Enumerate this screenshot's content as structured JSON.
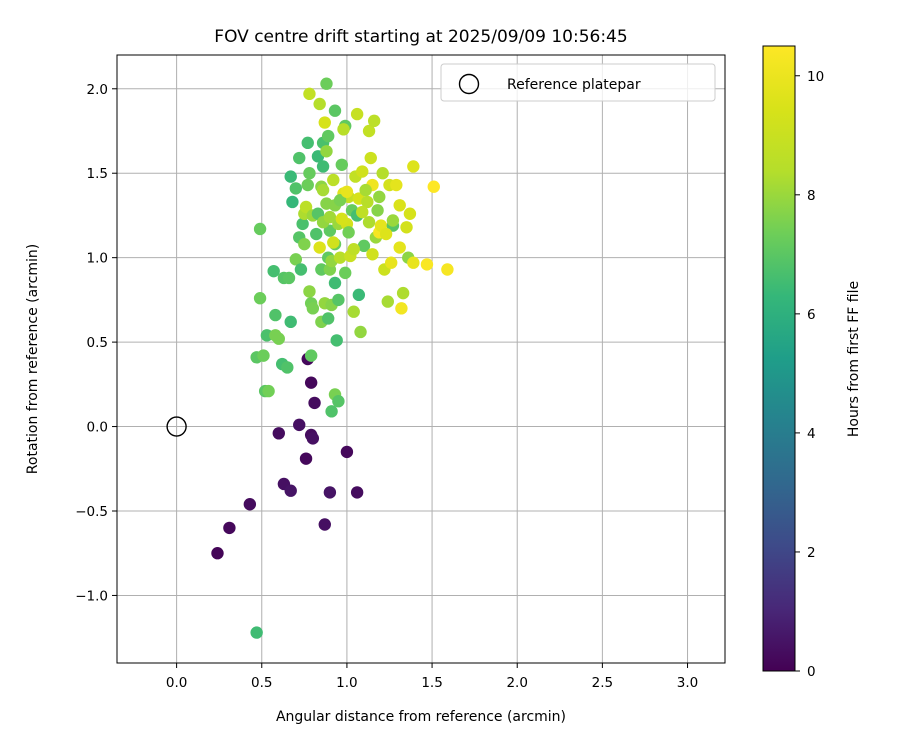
{
  "chart_data": {
    "type": "scatter",
    "title": "FOV centre drift starting at 2025/09/09 10:56:45",
    "xlabel": "Angular distance from reference (arcmin)",
    "ylabel": "Rotation from reference (arcmin)",
    "xlim": [
      -0.35,
      3.22
    ],
    "ylim": [
      -1.4,
      2.2
    ],
    "xticks": [
      0.0,
      0.5,
      1.0,
      1.5,
      2.0,
      2.5,
      3.0
    ],
    "xtick_labels": [
      "0.0",
      "0.5",
      "1.0",
      "1.5",
      "2.0",
      "2.5",
      "3.0"
    ],
    "yticks": [
      -1.0,
      -0.5,
      0.0,
      0.5,
      1.0,
      1.5,
      2.0
    ],
    "ytick_labels": [
      "−1.0",
      "−0.5",
      "0.0",
      "0.5",
      "1.0",
      "1.5",
      "2.0"
    ],
    "grid": true,
    "legend": {
      "placement": "top-right",
      "entries": [
        "Reference platepar"
      ]
    },
    "reference_point": {
      "x": 0.0,
      "y": 0.0,
      "label": "Reference platepar"
    },
    "colorbar": {
      "label": "Hours from first FF file",
      "colormap": "viridis",
      "range": [
        0,
        10.5
      ],
      "ticks": [
        0,
        2,
        4,
        6,
        8,
        10
      ],
      "tick_labels": [
        "0",
        "2",
        "4",
        "6",
        "8",
        "10"
      ]
    },
    "points": [
      [
        0.24,
        -0.75,
        0.1
      ],
      [
        0.31,
        -0.6,
        0.2
      ],
      [
        0.43,
        -0.46,
        0.3
      ],
      [
        0.6,
        -0.04,
        0.3
      ],
      [
        0.63,
        -0.34,
        0.4
      ],
      [
        0.67,
        -0.38,
        0.5
      ],
      [
        0.72,
        0.01,
        0.4
      ],
      [
        0.76,
        -0.19,
        0.2
      ],
      [
        0.79,
        -0.05,
        0.3
      ],
      [
        0.8,
        -0.07,
        0.4
      ],
      [
        0.77,
        0.4,
        0.2
      ],
      [
        0.79,
        0.26,
        0.2
      ],
      [
        0.81,
        0.14,
        0.3
      ],
      [
        0.87,
        -0.58,
        0.4
      ],
      [
        0.9,
        -0.39,
        0.5
      ],
      [
        1.0,
        -0.15,
        0.2
      ],
      [
        1.06,
        -0.39,
        0.3
      ],
      [
        0.47,
        -1.22,
        6.5
      ],
      [
        0.47,
        0.41,
        7.0
      ],
      [
        0.51,
        0.42,
        7.3
      ],
      [
        0.52,
        0.21,
        7.0
      ],
      [
        0.54,
        0.21,
        7.4
      ],
      [
        0.53,
        0.54,
        6.7
      ],
      [
        0.58,
        0.54,
        7.5
      ],
      [
        0.58,
        0.66,
        6.8
      ],
      [
        0.6,
        0.52,
        7.5
      ],
      [
        0.62,
        0.37,
        6.6
      ],
      [
        0.65,
        0.35,
        6.8
      ],
      [
        0.67,
        0.62,
        6.5
      ],
      [
        0.79,
        0.42,
        7.1
      ],
      [
        0.91,
        0.09,
        6.8
      ],
      [
        0.93,
        0.19,
        7.5
      ],
      [
        0.95,
        0.15,
        6.9
      ],
      [
        0.49,
        0.76,
        7.3
      ],
      [
        0.49,
        1.17,
        7.2
      ],
      [
        0.57,
        0.92,
        6.6
      ],
      [
        0.63,
        0.88,
        6.9
      ],
      [
        0.66,
        0.88,
        7.0
      ],
      [
        0.67,
        1.48,
        6.4
      ],
      [
        0.68,
        1.33,
        6.3
      ],
      [
        0.7,
        1.41,
        6.8
      ],
      [
        0.72,
        1.59,
        6.8
      ],
      [
        0.72,
        1.12,
        6.9
      ],
      [
        0.7,
        0.99,
        7.5
      ],
      [
        0.73,
        0.93,
        6.6
      ],
      [
        0.74,
        1.2,
        6.7
      ],
      [
        0.75,
        1.26,
        8.3
      ],
      [
        0.76,
        1.3,
        8.6
      ],
      [
        0.77,
        1.43,
        7.3
      ],
      [
        0.77,
        1.68,
        6.6
      ],
      [
        0.78,
        1.5,
        7.2
      ],
      [
        0.78,
        0.8,
        7.8
      ],
      [
        0.79,
        0.73,
        7.4
      ],
      [
        0.8,
        0.7,
        7.5
      ],
      [
        0.82,
        1.14,
        6.8
      ],
      [
        0.83,
        1.6,
        6.4
      ],
      [
        0.84,
        1.06,
        9.6
      ],
      [
        0.85,
        1.42,
        7.8
      ],
      [
        0.85,
        0.93,
        7.1
      ],
      [
        0.85,
        0.62,
        7.6
      ],
      [
        0.86,
        1.68,
        6.7
      ],
      [
        0.86,
        1.54,
        6.5
      ],
      [
        0.86,
        1.4,
        8.2
      ],
      [
        0.87,
        0.73,
        7.9
      ],
      [
        0.88,
        1.32,
        7.7
      ],
      [
        0.88,
        1.63,
        7.9
      ],
      [
        0.89,
        1.0,
        7.1
      ],
      [
        0.89,
        0.64,
        6.8
      ],
      [
        0.9,
        1.16,
        7.1
      ],
      [
        0.9,
        0.93,
        7.6
      ],
      [
        0.91,
        0.72,
        7.7
      ],
      [
        0.91,
        0.98,
        7.9
      ],
      [
        0.92,
        1.46,
        8.6
      ],
      [
        0.93,
        1.31,
        7.7
      ],
      [
        0.93,
        1.08,
        7.2
      ],
      [
        0.93,
        0.85,
        6.5
      ],
      [
        0.94,
        0.51,
        6.6
      ],
      [
        0.95,
        0.75,
        6.9
      ],
      [
        0.95,
        1.2,
        8.0
      ],
      [
        0.96,
        1.0,
        8.5
      ],
      [
        0.97,
        1.55,
        7.2
      ],
      [
        0.98,
        1.38,
        9.7
      ],
      [
        0.99,
        1.78,
        7.1
      ],
      [
        0.99,
        0.91,
        7.3
      ],
      [
        1.0,
        1.2,
        9.3
      ],
      [
        1.01,
        1.36,
        8.9
      ],
      [
        1.02,
        1.01,
        9.0
      ],
      [
        1.03,
        1.28,
        7.2
      ],
      [
        1.04,
        0.68,
        8.2
      ],
      [
        1.05,
        1.48,
        8.8
      ],
      [
        1.06,
        1.85,
        8.9
      ],
      [
        1.06,
        1.25,
        6.6
      ],
      [
        1.07,
        1.35,
        9.4
      ],
      [
        1.07,
        0.78,
        6.4
      ],
      [
        1.08,
        0.56,
        7.9
      ],
      [
        1.09,
        1.51,
        9.2
      ],
      [
        1.1,
        1.07,
        7.1
      ],
      [
        1.12,
        1.33,
        8.5
      ],
      [
        1.13,
        1.75,
        8.8
      ],
      [
        1.14,
        1.59,
        9.1
      ],
      [
        1.15,
        1.43,
        10.1
      ],
      [
        1.15,
        1.02,
        9.2
      ],
      [
        1.16,
        1.81,
        8.6
      ],
      [
        1.17,
        1.12,
        8.0
      ],
      [
        1.19,
        1.15,
        10.3
      ],
      [
        1.2,
        1.19,
        9.8
      ],
      [
        1.21,
        1.5,
        8.4
      ],
      [
        1.22,
        0.93,
        9.1
      ],
      [
        1.24,
        0.74,
        8.2
      ],
      [
        1.25,
        1.43,
        9.3
      ],
      [
        1.27,
        1.19,
        6.9
      ],
      [
        1.29,
        1.43,
        9.8
      ],
      [
        1.31,
        1.31,
        9.5
      ],
      [
        1.31,
        1.06,
        9.8
      ],
      [
        1.32,
        0.7,
        10.2
      ],
      [
        1.33,
        0.79,
        8.3
      ],
      [
        1.35,
        1.18,
        9.3
      ],
      [
        1.36,
        1.0,
        7.8
      ],
      [
        1.37,
        1.26,
        9.4
      ],
      [
        1.39,
        1.54,
        9.6
      ],
      [
        1.39,
        0.97,
        9.9
      ],
      [
        1.47,
        0.96,
        10.4
      ],
      [
        1.51,
        1.42,
        10.5
      ],
      [
        1.59,
        0.93,
        10.3
      ],
      [
        0.78,
        1.97,
        8.8
      ],
      [
        0.84,
        1.91,
        8.4
      ],
      [
        0.88,
        2.03,
        7.3
      ],
      [
        0.87,
        1.8,
        9.4
      ],
      [
        0.89,
        1.72,
        7.1
      ],
      [
        0.93,
        1.87,
        7.0
      ],
      [
        0.98,
        1.76,
        8.5
      ],
      [
        0.8,
        1.25,
        8.0
      ],
      [
        0.83,
        1.26,
        6.9
      ],
      [
        0.96,
        1.34,
        7.5
      ],
      [
        1.01,
        1.15,
        7.4
      ],
      [
        1.04,
        1.05,
        8.7
      ],
      [
        1.13,
        1.21,
        8.3
      ],
      [
        1.18,
        1.28,
        7.7
      ],
      [
        1.23,
        1.14,
        9.6
      ],
      [
        1.26,
        0.97,
        9.9
      ],
      [
        0.75,
        1.08,
        7.6
      ],
      [
        0.86,
        1.21,
        7.9
      ],
      [
        0.9,
        1.24,
        8.1
      ],
      [
        0.92,
        1.09,
        9.2
      ],
      [
        0.97,
        1.23,
        9.4
      ],
      [
        1.0,
        1.39,
        9.9
      ],
      [
        1.09,
        1.27,
        8.7
      ],
      [
        1.11,
        1.4,
        8.2
      ],
      [
        1.19,
        1.36,
        7.9
      ],
      [
        1.27,
        1.22,
        8.0
      ]
    ]
  }
}
